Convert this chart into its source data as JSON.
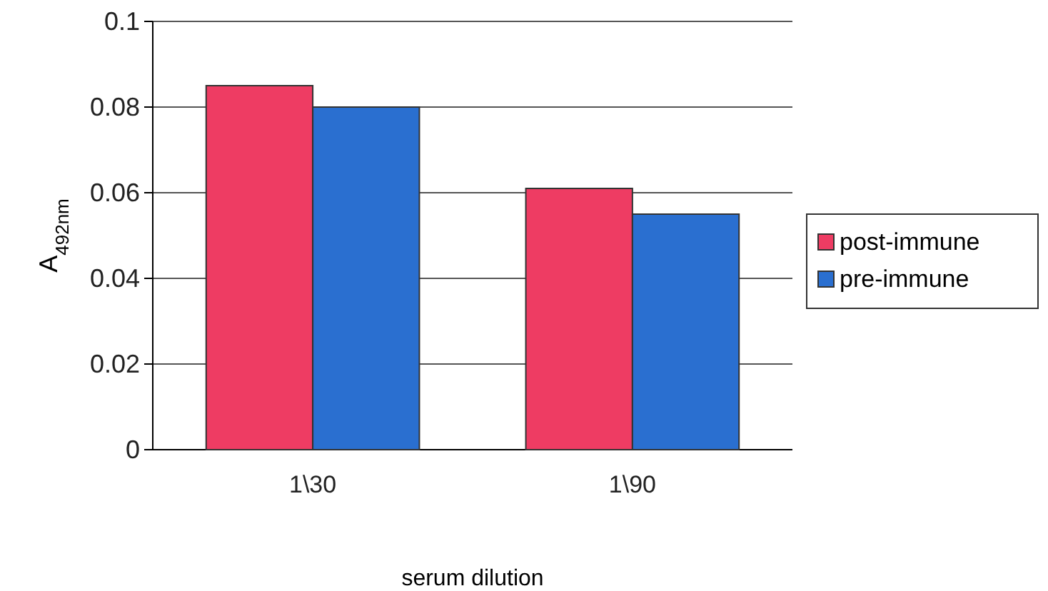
{
  "chart_data": {
    "type": "bar",
    "xlabel": "serum dilution",
    "ylabel": "A$_{492nm}$",
    "categories": [
      "1\\30",
      "1\\90"
    ],
    "series": [
      {
        "name": "post-immune",
        "color": "#ee3c63",
        "values": [
          0.085,
          0.061
        ]
      },
      {
        "name": "pre-immune",
        "color": "#2a6fd0",
        "values": [
          0.08,
          0.055
        ]
      }
    ],
    "ylim": [
      0,
      0.1
    ],
    "yticks": [
      0,
      0.02,
      0.04,
      0.06,
      0.08,
      0.1
    ],
    "grid": "y",
    "legend": "right"
  }
}
